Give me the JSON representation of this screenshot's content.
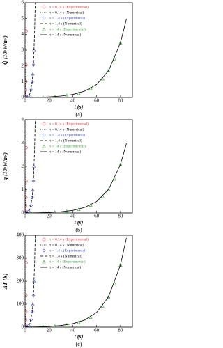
{
  "chart_data": [
    {
      "type": "line",
      "y_label": "Q̇ (10⁶W/m³)",
      "x_label": "t (s)",
      "caption": "(a)",
      "xlim": [
        0,
        90
      ],
      "xticks": [
        0,
        20,
        40,
        60,
        80
      ],
      "ylim": [
        0,
        6
      ],
      "yticks": [
        0,
        1,
        2,
        3,
        4,
        5,
        6
      ],
      "legend": "upper left",
      "series": [
        {
          "name": "τ = 0.14 s (Experimental)",
          "color": "#e0303a",
          "marker": "circle",
          "x": [
            0.1,
            0.3,
            0.5,
            0.6,
            0.7,
            0.8
          ],
          "values": [
            0.015,
            0.105,
            0.48,
            1.0,
            2.05,
            4.2
          ]
        },
        {
          "name": "τ = 0.14 s (Numerical)",
          "color": "#000000",
          "dash": "dotted",
          "x": [
            0,
            0.2,
            0.4,
            0.6,
            0.7,
            0.8,
            0.85
          ],
          "values": [
            0,
            0.044,
            0.23,
            1.0,
            2.06,
            4.2,
            6.0
          ]
        },
        {
          "name": "τ = 1.4 s (Experimental)",
          "color": "#4455cc",
          "marker": "diamond",
          "x": [
            1,
            3,
            5,
            6,
            6.5,
            7,
            7.5
          ],
          "values": [
            0.015,
            0.105,
            0.48,
            1.0,
            1.44,
            2.06,
            2.96
          ]
        },
        {
          "name": "τ = 1.4 s (Numerical)",
          "color": "#000000",
          "dash": "dashed",
          "x": [
            0,
            2,
            4,
            6,
            7,
            8,
            8.5
          ],
          "values": [
            0,
            0.044,
            0.23,
            1.0,
            2.06,
            4.2,
            6.0
          ]
        },
        {
          "name": "τ = 14 s (Experimental)",
          "color": "#3a9a3a",
          "marker": "triangle",
          "x": [
            5,
            15,
            25,
            35,
            45,
            55,
            65,
            70,
            75,
            80
          ],
          "values": [
            0.005,
            0.022,
            0.057,
            0.13,
            0.27,
            0.57,
            1.19,
            1.69,
            2.43,
            3.47
          ]
        },
        {
          "name": "τ = 14 s (Numerical)",
          "color": "#000000",
          "dash": "solid",
          "x": [
            0,
            10,
            20,
            30,
            40,
            50,
            60,
            70,
            80,
            85
          ],
          "values": [
            0,
            0.012,
            0.036,
            0.087,
            0.19,
            0.4,
            0.82,
            1.69,
            3.47,
            4.97
          ]
        }
      ]
    },
    {
      "type": "line",
      "y_label": "q (10⁶W/m²)",
      "x_label": "t (s)",
      "caption": "(b)",
      "xlim": [
        0,
        90
      ],
      "xticks": [
        0,
        20,
        40,
        60,
        80
      ],
      "ylim": [
        0,
        4
      ],
      "yticks": [
        0,
        1,
        2,
        3,
        4
      ],
      "legend": "upper left",
      "series": [
        {
          "name": "τ = 0.14 s (Experimental)",
          "color": "#e0303a",
          "marker": "circle",
          "x": [
            0.1,
            0.3,
            0.5,
            0.6,
            0.7,
            0.8
          ],
          "values": [
            0.01,
            0.07,
            0.32,
            0.67,
            1.37,
            2.8
          ]
        },
        {
          "name": "τ = 0.14 s (Numerical)",
          "color": "#000000",
          "dash": "dotted",
          "x": [
            0,
            0.2,
            0.4,
            0.6,
            0.7,
            0.8,
            0.85
          ],
          "values": [
            0,
            0.03,
            0.15,
            0.67,
            1.37,
            2.8,
            4.0
          ]
        },
        {
          "name": "τ = 1.4 s (Experimental)",
          "color": "#4455cc",
          "marker": "diamond",
          "x": [
            1,
            3,
            5,
            6,
            6.5,
            7,
            7.5
          ],
          "values": [
            0.01,
            0.07,
            0.32,
            0.67,
            0.96,
            1.37,
            1.97
          ]
        },
        {
          "name": "τ = 1.4 s (Numerical)",
          "color": "#000000",
          "dash": "dashed",
          "x": [
            0,
            2,
            4,
            6,
            7,
            8,
            8.5
          ],
          "values": [
            0,
            0.03,
            0.15,
            0.67,
            1.37,
            2.8,
            4.0
          ]
        },
        {
          "name": "τ = 14 s (Experimental)",
          "color": "#3a9a3a",
          "marker": "triangle",
          "x": [
            5,
            15,
            25,
            35,
            45,
            55,
            65,
            70,
            75,
            80
          ],
          "values": [
            0.003,
            0.013,
            0.034,
            0.078,
            0.16,
            0.34,
            0.71,
            1.01,
            1.46,
            2.08
          ]
        },
        {
          "name": "τ = 14 s (Numerical)",
          "color": "#000000",
          "dash": "solid",
          "x": [
            0,
            10,
            20,
            30,
            40,
            50,
            60,
            70,
            80,
            85
          ],
          "values": [
            0,
            0.007,
            0.022,
            0.052,
            0.11,
            0.24,
            0.49,
            1.01,
            2.08,
            2.98
          ]
        }
      ]
    },
    {
      "type": "line",
      "y_label": "ΔT (K)",
      "x_label": "t (s)",
      "caption": "(c)",
      "xlim": [
        0,
        90
      ],
      "xticks": [
        0,
        20,
        40,
        60,
        80
      ],
      "ylim": [
        0,
        400
      ],
      "yticks": [
        0,
        100,
        200,
        300,
        400
      ],
      "legend": "upper left",
      "series": [
        {
          "name": "τ = 0.14 s (Experimental)",
          "color": "#e0303a",
          "marker": "circle",
          "x": [
            0.1,
            0.3,
            0.5,
            0.6,
            0.7,
            0.8
          ],
          "values": [
            1,
            7,
            32,
            67,
            137,
            280
          ]
        },
        {
          "name": "τ = 0.14 s (Numerical)",
          "color": "#000000",
          "dash": "dotted",
          "x": [
            0,
            0.2,
            0.4,
            0.6,
            0.7,
            0.8,
            0.85
          ],
          "values": [
            0,
            3,
            15,
            67,
            137,
            280,
            400
          ]
        },
        {
          "name": "τ = 1.4 s (Experimental)",
          "color": "#4455cc",
          "marker": "diamond",
          "x": [
            1,
            3,
            5,
            6,
            6.5,
            7,
            7.5
          ],
          "values": [
            1,
            7,
            32,
            67,
            96,
            137,
            197
          ]
        },
        {
          "name": "τ = 1.4 s (Numerical)",
          "color": "#000000",
          "dash": "dashed",
          "x": [
            0,
            2,
            4,
            6,
            7,
            8,
            8.5
          ],
          "values": [
            0,
            3,
            15,
            67,
            137,
            280,
            400
          ]
        },
        {
          "name": "τ = 14 s (Experimental)",
          "color": "#3a9a3a",
          "marker": "triangle",
          "x": [
            5,
            15,
            25,
            35,
            45,
            55,
            65,
            70,
            75,
            80
          ],
          "values": [
            0.4,
            2,
            4,
            10,
            21,
            44,
            93,
            132,
            190,
            271
          ]
        },
        {
          "name": "τ = 14 s (Numerical)",
          "color": "#000000",
          "dash": "solid",
          "x": [
            0,
            10,
            20,
            30,
            40,
            50,
            60,
            70,
            80,
            85
          ],
          "values": [
            0,
            1,
            3,
            7,
            15,
            31,
            64,
            132,
            271,
            388
          ]
        }
      ]
    }
  ]
}
